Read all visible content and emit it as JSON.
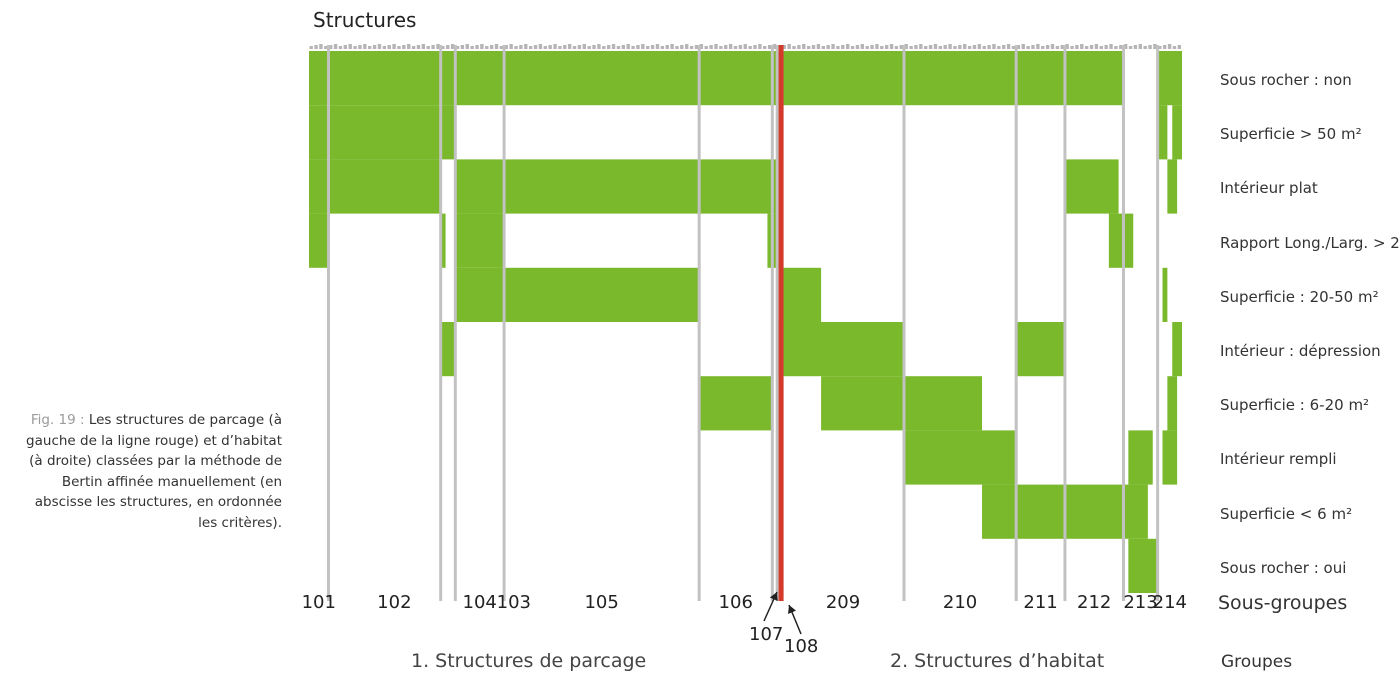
{
  "title": "Structures",
  "caption": {
    "lead": "Fig. 19 : ",
    "text": "Les structures de parcage (à gauche de la ligne rouge) et d’habitat (à droite) classées par la méthode de Bertin affinée manuellement (en abscisse les structures, en ordonnée les critères)."
  },
  "colors": {
    "cell": "#7ab82c",
    "separator": "#c2c2c2",
    "red_line": "#d33a2c"
  },
  "subgroups_label": "Sous-groupes",
  "groups_label": "Groupes",
  "groups": [
    "1. Structures de parcage",
    "2. Structures d’habitat"
  ],
  "annotations": [
    "107",
    "108"
  ],
  "chart_data": {
    "type": "heatmap",
    "title": "Structures",
    "x_unit": "structure index (ordered)",
    "criteria": [
      "Sous rocher : non",
      "Superficie > 50 m²",
      "Intérieur plat",
      "Rapport Long./Larg. > 2.5",
      "Superficie : 20-50 m²",
      "Intérieur : dépression",
      "Superficie :  6-20 m²",
      "Intérieur rempli",
      "Superficie < 6 m²",
      "Sous rocher : oui"
    ],
    "subgroups": [
      {
        "label": "101",
        "range": [
          0,
          4
        ]
      },
      {
        "label": "102",
        "range": [
          4,
          27
        ]
      },
      {
        "label": "103",
        "range": [
          27,
          30
        ]
      },
      {
        "label": "104",
        "range": [
          30,
          10
        ]
      },
      {
        "label": "105",
        "range": [
          40,
          40
        ]
      },
      {
        "label": "106",
        "range": [
          80,
          15
        ]
      },
      {
        "label": "107",
        "range": [
          95,
          1
        ]
      },
      {
        "label": "108",
        "range": [
          96,
          1
        ]
      },
      {
        "label": "209",
        "range": [
          97,
          25
        ]
      },
      {
        "label": "210",
        "range": [
          122,
          23
        ]
      },
      {
        "label": "211",
        "range": [
          145,
          10
        ]
      },
      {
        "label": "212",
        "range": [
          155,
          12
        ]
      },
      {
        "label": "213",
        "range": [
          167,
          7
        ]
      },
      {
        "label": "214",
        "range": [
          174,
          5
        ]
      }
    ],
    "total_structures": 179,
    "red_line_after": 97,
    "cells": [
      {
        "row": 0,
        "spans": [
          [
            0,
            167
          ],
          [
            174,
            179
          ]
        ]
      },
      {
        "row": 1,
        "spans": [
          [
            0,
            30
          ],
          [
            174,
            176
          ],
          [
            177,
            179
          ]
        ]
      },
      {
        "row": 2,
        "spans": [
          [
            0,
            27
          ],
          [
            30,
            97
          ],
          [
            155,
            166
          ],
          [
            176,
            178
          ]
        ]
      },
      {
        "row": 3,
        "spans": [
          [
            0,
            4
          ],
          [
            27,
            28
          ],
          [
            30,
            40
          ],
          [
            94,
            97
          ],
          [
            164,
            169
          ]
        ]
      },
      {
        "row": 4,
        "spans": [
          [
            30,
            80
          ],
          [
            97,
            105
          ],
          [
            175,
            176
          ]
        ]
      },
      {
        "row": 5,
        "spans": [
          [
            27,
            30
          ],
          [
            96,
            122
          ],
          [
            145,
            155
          ],
          [
            177,
            179
          ]
        ]
      },
      {
        "row": 6,
        "spans": [
          [
            80,
            95
          ],
          [
            105,
            138
          ],
          [
            176,
            178
          ]
        ]
      },
      {
        "row": 7,
        "spans": [
          [
            122,
            145
          ],
          [
            168,
            173
          ],
          [
            175,
            178
          ]
        ]
      },
      {
        "row": 8,
        "spans": [
          [
            138,
            172
          ]
        ]
      },
      {
        "row": 9,
        "spans": [
          [
            168,
            174
          ]
        ]
      }
    ]
  }
}
